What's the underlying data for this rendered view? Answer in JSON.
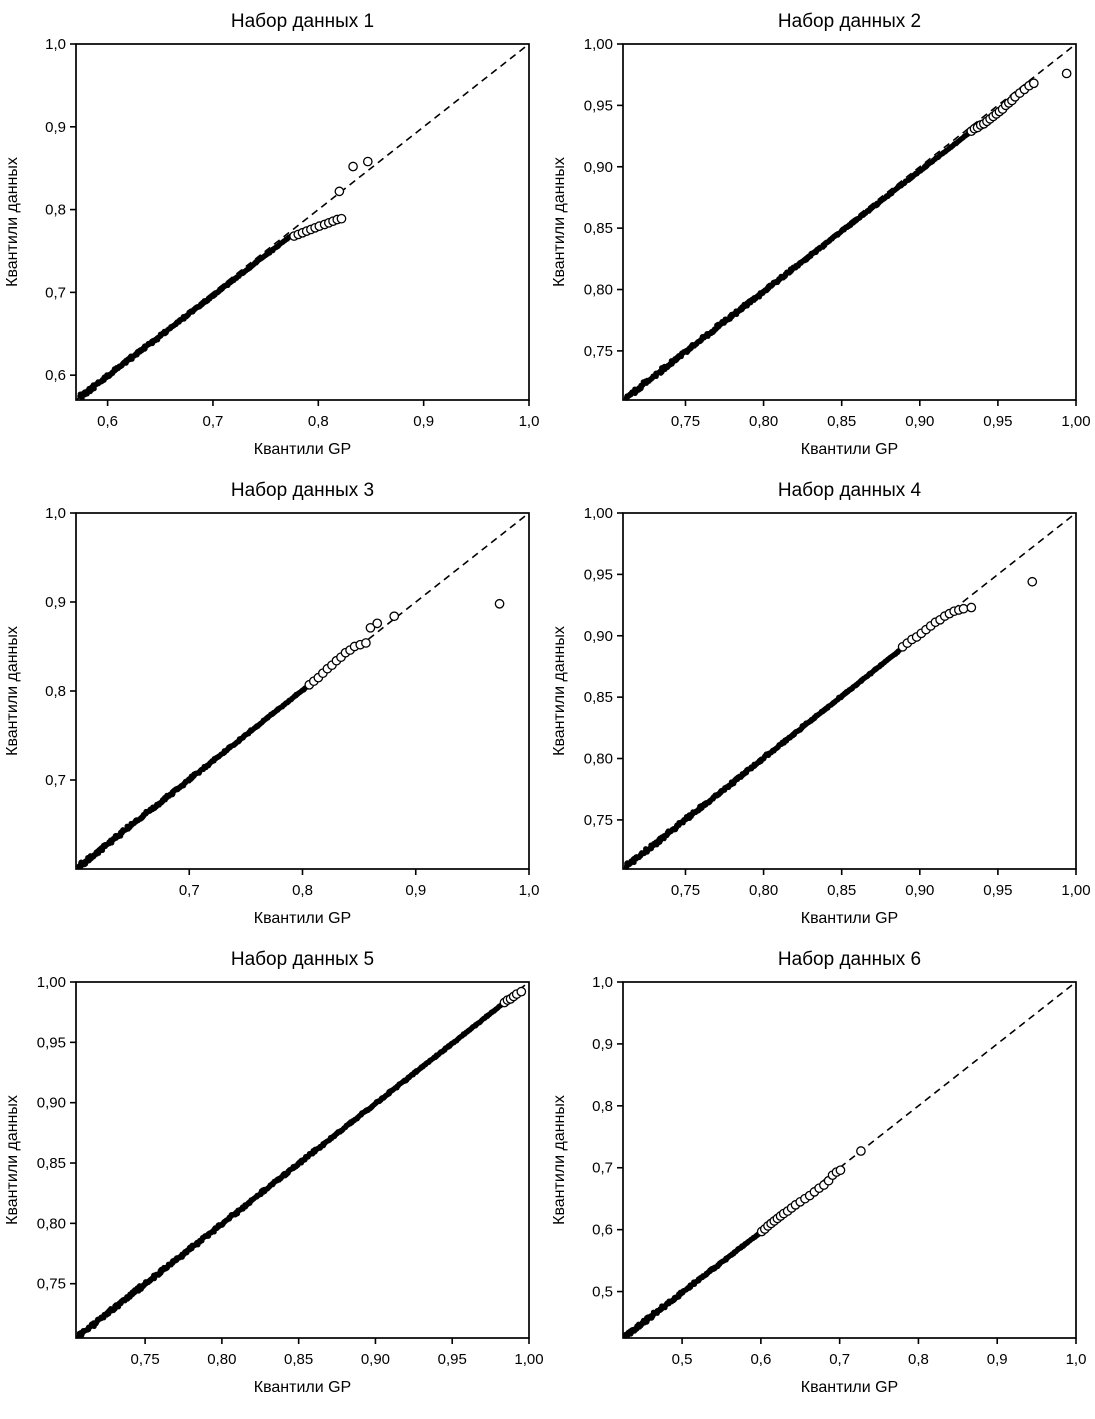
{
  "page": {
    "background": "#ffffff",
    "layout": "2x3 grid of Q-Q plots"
  },
  "colors": {
    "points": "#000000",
    "reference_line": "#000000",
    "axis": "#000000",
    "marker_fill": "#ffffff"
  },
  "chart_data": [
    {
      "type": "scatter",
      "title": "Набор данных 1",
      "xlabel": "Квантили GP",
      "ylabel": "Квантили данных",
      "xlim": [
        0.57,
        1.0
      ],
      "ylim": [
        0.57,
        1.0
      ],
      "xtick_values": [
        0.6,
        0.7,
        0.8,
        0.9,
        1.0
      ],
      "xtick_labels": [
        "0,6",
        "0,7",
        "0,8",
        "0,9",
        "1,0"
      ],
      "ytick_values": [
        0.6,
        0.7,
        0.8,
        0.9,
        1.0
      ],
      "ytick_labels": [
        "0,6",
        "0,7",
        "0,8",
        "0,9",
        "1,0"
      ],
      "identity_line": {
        "style": "dashed",
        "from": [
          0.57,
          0.57
        ],
        "to": [
          1.0,
          1.0
        ]
      },
      "dense_band": {
        "from": [
          0.574,
          0.574
        ],
        "to": [
          0.774,
          0.768
        ],
        "description": "dense overlapping sample quantiles along identity line"
      },
      "tail_points": [
        [
          0.777,
          0.768
        ],
        [
          0.781,
          0.77
        ],
        [
          0.785,
          0.772
        ],
        [
          0.789,
          0.774
        ],
        [
          0.793,
          0.776
        ],
        [
          0.797,
          0.778
        ],
        [
          0.801,
          0.78
        ],
        [
          0.806,
          0.782
        ],
        [
          0.81,
          0.784
        ],
        [
          0.814,
          0.786
        ],
        [
          0.818,
          0.788
        ],
        [
          0.822,
          0.789
        ],
        [
          0.82,
          0.822
        ],
        [
          0.833,
          0.852
        ],
        [
          0.847,
          0.858
        ]
      ],
      "marker": "open-circle",
      "grid": false,
      "legend": false
    },
    {
      "type": "scatter",
      "title": "Набор данных 2",
      "xlabel": "Квантили GP",
      "ylabel": "Квантили данных",
      "xlim": [
        0.71,
        1.0
      ],
      "ylim": [
        0.71,
        1.0
      ],
      "xtick_values": [
        0.75,
        0.8,
        0.85,
        0.9,
        0.95,
        1.0
      ],
      "xtick_labels": [
        "0,75",
        "0,80",
        "0,85",
        "0,90",
        "0,95",
        "1,00"
      ],
      "ytick_values": [
        0.75,
        0.8,
        0.85,
        0.9,
        0.95,
        1.0
      ],
      "ytick_labels": [
        "0,75",
        "0,80",
        "0,85",
        "0,90",
        "0,95",
        "1,00"
      ],
      "identity_line": {
        "style": "dashed",
        "from": [
          0.71,
          0.71
        ],
        "to": [
          1.0,
          1.0
        ]
      },
      "dense_band": {
        "from": [
          0.712,
          0.712
        ],
        "to": [
          0.932,
          0.928
        ],
        "description": "dense overlapping sample quantiles along identity line"
      },
      "tail_points": [
        [
          0.933,
          0.929
        ],
        [
          0.935,
          0.931
        ],
        [
          0.937,
          0.932
        ],
        [
          0.939,
          0.934
        ],
        [
          0.941,
          0.935
        ],
        [
          0.943,
          0.937
        ],
        [
          0.945,
          0.939
        ],
        [
          0.947,
          0.941
        ],
        [
          0.949,
          0.943
        ],
        [
          0.951,
          0.945
        ],
        [
          0.953,
          0.947
        ],
        [
          0.955,
          0.95
        ],
        [
          0.957,
          0.952
        ],
        [
          0.959,
          0.954
        ],
        [
          0.961,
          0.957
        ],
        [
          0.964,
          0.96
        ],
        [
          0.967,
          0.963
        ],
        [
          0.97,
          0.966
        ],
        [
          0.973,
          0.968
        ],
        [
          0.994,
          0.976
        ]
      ],
      "marker": "open-circle",
      "grid": false,
      "legend": false
    },
    {
      "type": "scatter",
      "title": "Набор данных 3",
      "xlabel": "Квантили GP",
      "ylabel": "Квантили данных",
      "xlim": [
        0.6,
        1.0
      ],
      "ylim": [
        0.6,
        1.0
      ],
      "xtick_values": [
        0.7,
        0.8,
        0.9,
        1.0
      ],
      "xtick_labels": [
        "0,7",
        "0,8",
        "0,9",
        "1,0"
      ],
      "ytick_values": [
        0.7,
        0.8,
        0.9,
        1.0
      ],
      "ytick_labels": [
        "0,7",
        "0,8",
        "0,9",
        "1,0"
      ],
      "identity_line": {
        "style": "dashed",
        "from": [
          0.6,
          0.6
        ],
        "to": [
          1.0,
          1.0
        ]
      },
      "dense_band": {
        "from": [
          0.603,
          0.603
        ],
        "to": [
          0.804,
          0.805
        ],
        "description": "dense overlapping sample quantiles along identity line"
      },
      "tail_points": [
        [
          0.806,
          0.807
        ],
        [
          0.81,
          0.811
        ],
        [
          0.814,
          0.815
        ],
        [
          0.818,
          0.82
        ],
        [
          0.822,
          0.825
        ],
        [
          0.826,
          0.829
        ],
        [
          0.83,
          0.834
        ],
        [
          0.834,
          0.838
        ],
        [
          0.838,
          0.843
        ],
        [
          0.842,
          0.846
        ],
        [
          0.846,
          0.85
        ],
        [
          0.851,
          0.852
        ],
        [
          0.856,
          0.854
        ],
        [
          0.86,
          0.871
        ],
        [
          0.866,
          0.876
        ],
        [
          0.881,
          0.884
        ],
        [
          0.974,
          0.898
        ]
      ],
      "marker": "open-circle",
      "grid": false,
      "legend": false
    },
    {
      "type": "scatter",
      "title": "Набор данных 4",
      "xlabel": "Квантили GP",
      "ylabel": "Квантили данных",
      "xlim": [
        0.71,
        1.0
      ],
      "ylim": [
        0.71,
        1.0
      ],
      "xtick_values": [
        0.75,
        0.8,
        0.85,
        0.9,
        0.95,
        1.0
      ],
      "xtick_labels": [
        "0,75",
        "0,80",
        "0,85",
        "0,90",
        "0,95",
        "1,00"
      ],
      "ytick_values": [
        0.75,
        0.8,
        0.85,
        0.9,
        0.95,
        1.0
      ],
      "ytick_labels": [
        "0,75",
        "0,80",
        "0,85",
        "0,90",
        "0,95",
        "1,00"
      ],
      "identity_line": {
        "style": "dashed",
        "from": [
          0.71,
          0.71
        ],
        "to": [
          1.0,
          1.0
        ]
      },
      "dense_band": {
        "from": [
          0.712,
          0.712
        ],
        "to": [
          0.887,
          0.888
        ],
        "description": "dense overlapping sample quantiles along identity line"
      },
      "tail_points": [
        [
          0.889,
          0.891
        ],
        [
          0.892,
          0.894
        ],
        [
          0.895,
          0.897
        ],
        [
          0.898,
          0.899
        ],
        [
          0.901,
          0.902
        ],
        [
          0.904,
          0.905
        ],
        [
          0.907,
          0.908
        ],
        [
          0.91,
          0.911
        ],
        [
          0.913,
          0.913
        ],
        [
          0.916,
          0.916
        ],
        [
          0.919,
          0.918
        ],
        [
          0.922,
          0.92
        ],
        [
          0.925,
          0.921
        ],
        [
          0.928,
          0.922
        ],
        [
          0.933,
          0.923
        ],
        [
          0.972,
          0.944
        ]
      ],
      "marker": "open-circle",
      "grid": false,
      "legend": false
    },
    {
      "type": "scatter",
      "title": "Набор данных 5",
      "xlabel": "Квантили GP",
      "ylabel": "Квантили данных",
      "xlim": [
        0.705,
        1.0
      ],
      "ylim": [
        0.705,
        1.0
      ],
      "xtick_values": [
        0.75,
        0.8,
        0.85,
        0.9,
        0.95,
        1.0
      ],
      "xtick_labels": [
        "0,75",
        "0,80",
        "0,85",
        "0,90",
        "0,95",
        "1,00"
      ],
      "ytick_values": [
        0.75,
        0.8,
        0.85,
        0.9,
        0.95,
        1.0
      ],
      "ytick_labels": [
        "0,75",
        "0,80",
        "0,85",
        "0,90",
        "0,95",
        "1,00"
      ],
      "identity_line": {
        "style": "dashed",
        "from": [
          0.705,
          0.705
        ],
        "to": [
          1.0,
          1.0
        ]
      },
      "dense_band": {
        "from": [
          0.707,
          0.707
        ],
        "to": [
          0.983,
          0.982
        ],
        "description": "dense overlapping sample quantiles along full identity line"
      },
      "tail_points": [
        [
          0.984,
          0.983
        ],
        [
          0.986,
          0.985
        ],
        [
          0.988,
          0.986
        ],
        [
          0.99,
          0.988
        ],
        [
          0.992,
          0.99
        ],
        [
          0.995,
          0.992
        ]
      ],
      "marker": "open-circle",
      "grid": false,
      "legend": false
    },
    {
      "type": "scatter",
      "title": "Набор данных 6",
      "xlabel": "Квантили GP",
      "ylabel": "Квантили данных",
      "xlim": [
        0.425,
        1.0
      ],
      "ylim": [
        0.425,
        1.0
      ],
      "xtick_values": [
        0.5,
        0.6,
        0.7,
        0.8,
        0.9,
        1.0
      ],
      "xtick_labels": [
        "0,5",
        "0,6",
        "0,7",
        "0,8",
        "0,9",
        "1,0"
      ],
      "ytick_values": [
        0.5,
        0.6,
        0.7,
        0.8,
        0.9,
        1.0
      ],
      "ytick_labels": [
        "0,5",
        "0,6",
        "0,7",
        "0,8",
        "0,9",
        "1,0"
      ],
      "identity_line": {
        "style": "dashed",
        "from": [
          0.425,
          0.425
        ],
        "to": [
          1.0,
          1.0
        ]
      },
      "dense_band": {
        "from": [
          0.428,
          0.428
        ],
        "to": [
          0.598,
          0.594
        ],
        "description": "dense overlapping sample quantiles along identity line"
      },
      "tail_points": [
        [
          0.601,
          0.597
        ],
        [
          0.605,
          0.601
        ],
        [
          0.609,
          0.606
        ],
        [
          0.613,
          0.61
        ],
        [
          0.617,
          0.614
        ],
        [
          0.621,
          0.618
        ],
        [
          0.625,
          0.622
        ],
        [
          0.629,
          0.626
        ],
        [
          0.634,
          0.63
        ],
        [
          0.639,
          0.635
        ],
        [
          0.644,
          0.64
        ],
        [
          0.65,
          0.645
        ],
        [
          0.656,
          0.65
        ],
        [
          0.662,
          0.655
        ],
        [
          0.668,
          0.661
        ],
        [
          0.674,
          0.667
        ],
        [
          0.68,
          0.672
        ],
        [
          0.686,
          0.679
        ],
        [
          0.691,
          0.688
        ],
        [
          0.696,
          0.693
        ],
        [
          0.701,
          0.696
        ],
        [
          0.727,
          0.727
        ]
      ],
      "marker": "open-circle",
      "grid": false,
      "legend": false
    }
  ]
}
